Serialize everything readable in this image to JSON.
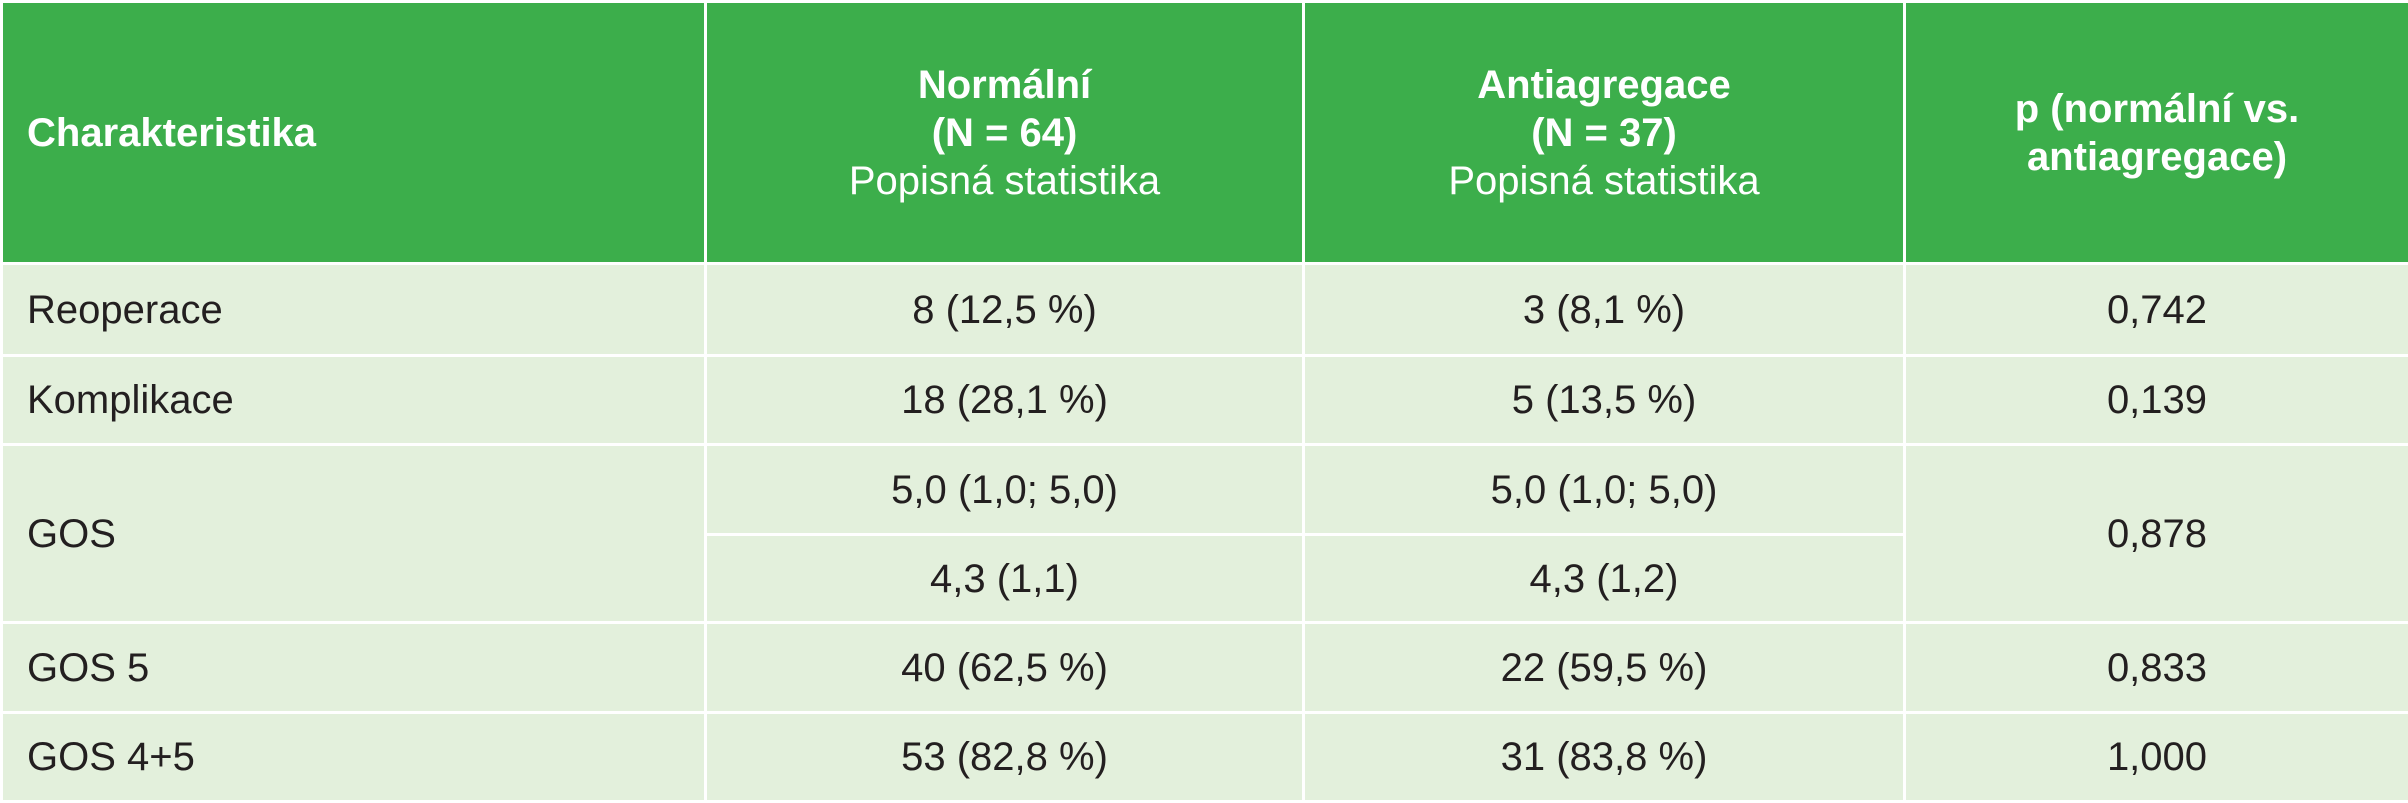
{
  "header": {
    "col1": "Charakteristika",
    "col2": {
      "line1": "Normální",
      "line2": "(N = 64)",
      "line3": "Popisná statistika"
    },
    "col3": {
      "line1": "Antiagregace",
      "line2": "(N = 37)",
      "line3": "Popisná statistika"
    },
    "col4": {
      "line1": "p (normální vs.",
      "line2": "antiagregace)"
    }
  },
  "rows": [
    {
      "label": "Reoperace",
      "normal": "8 (12,5 %)",
      "antiagregace": "3 (8,1 %)",
      "p": "0,742"
    },
    {
      "label": "Komplikace",
      "normal": "18 (28,1 %)",
      "antiagregace": "5 (13,5 %)",
      "p": "0,139"
    },
    {
      "label": "GOS",
      "normal": "5,0 (1,0; 5,0)",
      "antiagregace": "5,0 (1,0; 5,0)",
      "p": "0,878"
    },
    {
      "normal": "4,3 (1,1)",
      "antiagregace": "4,3 (1,2)"
    },
    {
      "label": "GOS 5",
      "normal": "40 (62,5 %)",
      "antiagregace": "22 (59,5 %)",
      "p": "0,833"
    },
    {
      "label": "GOS 4+5",
      "normal": "53 (82,8 %)",
      "antiagregace": "31 (83,8 %)",
      "p": "1,000"
    }
  ],
  "colors": {
    "header_bg": "#3cae4b",
    "body_bg": "#e3f0dc",
    "text": "#231f20"
  }
}
